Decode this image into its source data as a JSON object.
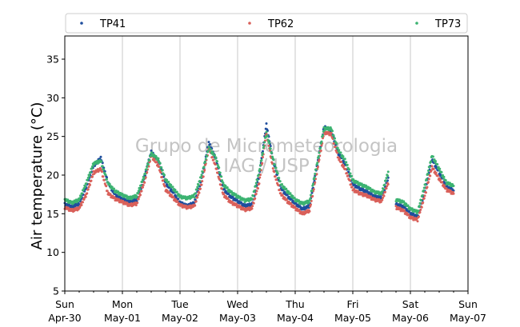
{
  "chart_data": {
    "type": "scatter",
    "ylabel": "Air temperature (°C)",
    "ylim": [
      5,
      38
    ],
    "yticks": [
      5,
      10,
      15,
      20,
      25,
      30,
      35
    ],
    "xlim": [
      "2023-04-30 00:00",
      "2023-05-07 00:00"
    ],
    "xticks": [
      {
        "day": "Sun",
        "date": "Apr-30"
      },
      {
        "day": "Mon",
        "date": "May-01"
      },
      {
        "day": "Tue",
        "date": "May-02"
      },
      {
        "day": "Wed",
        "date": "May-03"
      },
      {
        "day": "Thu",
        "date": "May-04"
      },
      {
        "day": "Fri",
        "date": "May-05"
      },
      {
        "day": "Sat",
        "date": "May-06"
      },
      {
        "day": "Sun",
        "date": "May-07"
      }
    ],
    "grid": "vertical",
    "legend_position": "top",
    "watermark": [
      "Grupo de Micrometeorologia",
      "IAG / USP"
    ],
    "time_step_hours": 3,
    "series": [
      {
        "name": "TP41",
        "color": "#1f4e9e",
        "values": [
          16.2,
          15.9,
          16.3,
          18.5,
          21.2,
          22.2,
          19.0,
          17.4,
          16.9,
          16.5,
          16.8,
          19.5,
          23.0,
          21.8,
          18.9,
          17.8,
          16.4,
          16.0,
          16.4,
          19.5,
          24.2,
          22.0,
          18.2,
          17.2,
          16.6,
          16.0,
          16.2,
          20.0,
          26.5,
          21.5,
          18.3,
          17.2,
          16.3,
          15.6,
          16.0,
          21.0,
          26.2,
          25.8,
          22.8,
          21.3,
          18.8,
          18.2,
          17.8,
          17.2,
          17.1,
          19.7,
          16.2,
          15.9,
          15.0,
          14.6,
          18.0,
          22.0,
          20.3,
          18.5,
          18.0
        ]
      },
      {
        "name": "TP62",
        "color": "#d9605a",
        "values": [
          15.8,
          15.4,
          15.7,
          17.5,
          20.3,
          20.8,
          17.6,
          16.9,
          16.5,
          16.1,
          16.3,
          18.9,
          22.5,
          21.2,
          18.1,
          17.1,
          16.1,
          15.8,
          16.0,
          18.8,
          23.5,
          21.0,
          17.5,
          16.5,
          16.0,
          15.5,
          15.7,
          19.0,
          25.5,
          20.5,
          17.5,
          16.5,
          15.7,
          15.0,
          15.4,
          20.3,
          25.5,
          25.3,
          22.2,
          20.6,
          18.1,
          17.6,
          17.3,
          16.8,
          16.6,
          19.2,
          15.8,
          15.4,
          14.5,
          14.2,
          17.3,
          21.0,
          19.5,
          18.1,
          17.6
        ]
      },
      {
        "name": "TP73",
        "color": "#3cb371",
        "values": [
          16.8,
          16.4,
          16.8,
          19.0,
          21.5,
          21.8,
          18.9,
          17.9,
          17.4,
          17.0,
          17.3,
          19.8,
          22.8,
          22.0,
          19.4,
          18.3,
          17.2,
          17.0,
          17.3,
          20.0,
          23.5,
          22.2,
          18.8,
          17.8,
          17.2,
          16.7,
          16.9,
          20.4,
          25.5,
          21.8,
          18.8,
          17.8,
          16.8,
          16.3,
          16.6,
          21.3,
          26.0,
          26.0,
          23.2,
          21.8,
          19.3,
          18.8,
          18.4,
          17.8,
          17.6,
          20.6,
          16.8,
          16.5,
          15.6,
          15.2,
          18.6,
          22.5,
          20.8,
          19.0,
          18.6
        ]
      }
    ]
  }
}
